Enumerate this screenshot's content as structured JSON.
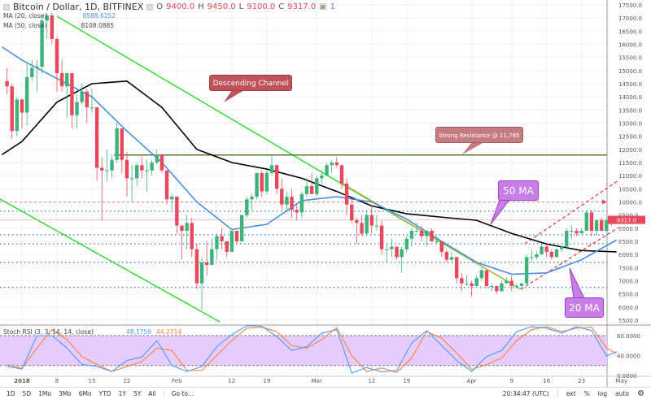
{
  "header": {
    "symbol": "Bitcoin / Dollar, 1D, BITFINEX",
    "o_label": "O",
    "o": "9400.0",
    "h_label": "H",
    "h": "9450.0",
    "l_label": "L",
    "l": "9100.0",
    "c_label": "C",
    "c": "9317.0",
    "alerts": "1"
  },
  "indicators": {
    "ma20": {
      "label": "MA (20, close)",
      "value": "8588.6252",
      "color": "#4a90e2"
    },
    "ma50": {
      "label": "MA (50, close)",
      "value": "8108.0885",
      "color": "#000000"
    },
    "stoch": {
      "label": "Stoch RSI (3, 3, 14, 14, close)",
      "k": "48.1759",
      "d": "44.2714",
      "k_color": "#4a9bff",
      "d_color": "#ff7f3f"
    }
  },
  "annotations": {
    "descending": "Descending Channel",
    "resistance": "Strong Resistance @ 11,785",
    "ma50": "50 MA",
    "ma20": "20 MA"
  },
  "price_label": "9317.0",
  "colors": {
    "up": "#3cb37a",
    "down": "#e8485b",
    "band": "#e6ccff",
    "channel": "#33dd33"
  },
  "toolbar": {
    "ranges": [
      "1D",
      "5D",
      "1Mo",
      "3Mo",
      "6Mo",
      "YTD",
      "1Y",
      "5Y",
      "All"
    ],
    "goto": "Go to...",
    "time": "20:34:47 (UTC)",
    "ext": "ext",
    "pct": "%",
    "log": "log",
    "auto": "auto"
  },
  "chart_data": {
    "type": "candlestick",
    "price_axis": {
      "range": [
        5500,
        17500
      ],
      "ticks": [
        "5500.0",
        "6000.0",
        "6500.0",
        "7000.0",
        "7500.0",
        "8000.0",
        "8500.0",
        "9000.0",
        "9500.0",
        "10000.0",
        "10500.0",
        "11000.0",
        "11500.0",
        "12000.0",
        "12500.0",
        "13000.0",
        "13500.0",
        "14000.0",
        "14500.0",
        "15000.0",
        "15500.0",
        "16000.0",
        "16500.0",
        "17000.0",
        "17500.0"
      ]
    },
    "rsi_axis": {
      "range": [
        0,
        100
      ],
      "ticks": [
        "0.0000",
        "40.0000",
        "80.0000"
      ],
      "band": [
        20,
        80
      ]
    },
    "time_ticks": [
      [
        "2018",
        "2018-01-01"
      ],
      [
        "8",
        "2018-01-08"
      ],
      [
        "15",
        "2018-01-15"
      ],
      [
        "22",
        "2018-01-22"
      ],
      [
        "Feb",
        "2018-02-01"
      ],
      [
        "12",
        "2018-02-12"
      ],
      [
        "19",
        "2018-02-19"
      ],
      [
        "Mar",
        "2018-03-01"
      ],
      [
        "12",
        "2018-03-12"
      ],
      [
        "19",
        "2018-03-19"
      ],
      [
        "Apr",
        "2018-04-01"
      ],
      [
        "9",
        "2018-04-09"
      ],
      [
        "16",
        "2018-04-16"
      ],
      [
        "23",
        "2018-04-23"
      ],
      [
        "May",
        "2018-05-01"
      ]
    ],
    "resistance": 11785,
    "levels_dotted": [
      9650,
      8750,
      8410,
      7700,
      6750
    ],
    "level_dashed": 10000,
    "candles": [
      [
        "2017-12-29",
        14600,
        15100,
        14100,
        14400
      ],
      [
        "2017-12-30",
        14400,
        14500,
        12400,
        12700
      ],
      [
        "2017-12-31",
        12700,
        14000,
        12500,
        13900
      ],
      [
        "2018-01-01",
        13900,
        13900,
        12800,
        13400
      ],
      [
        "2018-01-02",
        13400,
        15300,
        12900,
        14750
      ],
      [
        "2018-01-03",
        14750,
        15400,
        14600,
        15100
      ],
      [
        "2018-01-04",
        15100,
        15400,
        14200,
        15150
      ],
      [
        "2018-01-05",
        15150,
        17100,
        14900,
        16900
      ],
      [
        "2018-01-06",
        16900,
        17200,
        16200,
        17100
      ],
      [
        "2018-01-07",
        17100,
        17200,
        16000,
        16200
      ],
      [
        "2018-01-08",
        16200,
        16300,
        14200,
        14900
      ],
      [
        "2018-01-09",
        14900,
        15400,
        14200,
        14400
      ],
      [
        "2018-01-10",
        14400,
        14900,
        13200,
        14900
      ],
      [
        "2018-01-11",
        14900,
        14900,
        12800,
        13300
      ],
      [
        "2018-01-12",
        13300,
        14100,
        12800,
        13800
      ],
      [
        "2018-01-13",
        13800,
        14500,
        13700,
        14200
      ],
      [
        "2018-01-14",
        14200,
        14300,
        13000,
        13600
      ],
      [
        "2018-01-15",
        13600,
        14300,
        13400,
        13600
      ],
      [
        "2018-01-16",
        13600,
        13600,
        10800,
        11300
      ],
      [
        "2018-01-17",
        11300,
        11700,
        9300,
        11200
      ],
      [
        "2018-01-18",
        11200,
        12000,
        10800,
        11200
      ],
      [
        "2018-01-19",
        11200,
        11800,
        10900,
        11600
      ],
      [
        "2018-01-20",
        11600,
        13000,
        11500,
        12800
      ],
      [
        "2018-01-21",
        12800,
        12800,
        11100,
        11600
      ],
      [
        "2018-01-22",
        11600,
        11900,
        10200,
        10900
      ],
      [
        "2018-01-23",
        10900,
        11400,
        10000,
        10900
      ],
      [
        "2018-01-24",
        10900,
        11500,
        10600,
        11400
      ],
      [
        "2018-01-25",
        11400,
        11700,
        10900,
        11200
      ],
      [
        "2018-01-26",
        11200,
        11600,
        10400,
        11200
      ],
      [
        "2018-01-27",
        11200,
        11600,
        11000,
        11500
      ],
      [
        "2018-01-28",
        11500,
        12000,
        11400,
        11800
      ],
      [
        "2018-01-29",
        11800,
        11800,
        11100,
        11200
      ],
      [
        "2018-01-30",
        11200,
        11200,
        9900,
        10100
      ],
      [
        "2018-01-31",
        10100,
        10300,
        9700,
        10200
      ],
      [
        "2018-02-01",
        10200,
        10200,
        8800,
        9100
      ],
      [
        "2018-02-02",
        9100,
        9100,
        7800,
        8900
      ],
      [
        "2018-02-03",
        8900,
        9500,
        8200,
        9200
      ],
      [
        "2018-02-04",
        9200,
        9400,
        7900,
        8200
      ],
      [
        "2018-02-05",
        8200,
        8400,
        6700,
        6900
      ],
      [
        "2018-02-06",
        6900,
        7900,
        5900,
        7700
      ],
      [
        "2018-02-07",
        7700,
        8500,
        7200,
        7600
      ],
      [
        "2018-02-08",
        7600,
        8600,
        7600,
        8200
      ],
      [
        "2018-02-09",
        8200,
        8800,
        7800,
        8700
      ],
      [
        "2018-02-10",
        8700,
        9000,
        8200,
        8500
      ],
      [
        "2018-02-11",
        8500,
        8500,
        7900,
        8100
      ],
      [
        "2018-02-12",
        8100,
        8900,
        8100,
        8900
      ],
      [
        "2018-02-13",
        8900,
        8900,
        8400,
        8500
      ],
      [
        "2018-02-14",
        8500,
        9500,
        8500,
        9500
      ],
      [
        "2018-02-15",
        9500,
        10200,
        9400,
        10100
      ],
      [
        "2018-02-16",
        10100,
        10300,
        9700,
        10200
      ],
      [
        "2018-02-17",
        10200,
        11100,
        10100,
        11100
      ],
      [
        "2018-02-18",
        11100,
        11200,
        10200,
        10400
      ],
      [
        "2018-02-19",
        10400,
        11200,
        10300,
        11100
      ],
      [
        "2018-02-20",
        11100,
        11800,
        11000,
        11400
      ],
      [
        "2018-02-21",
        11400,
        11400,
        10300,
        10500
      ],
      [
        "2018-02-22",
        10500,
        10900,
        9700,
        9900
      ],
      [
        "2018-02-23",
        9900,
        10400,
        9600,
        10200
      ],
      [
        "2018-02-24",
        10200,
        10500,
        9400,
        9700
      ],
      [
        "2018-02-25",
        9700,
        9900,
        9300,
        9600
      ],
      [
        "2018-02-26",
        9600,
        10400,
        9400,
        10300
      ],
      [
        "2018-02-27",
        10300,
        10900,
        10200,
        10600
      ],
      [
        "2018-02-28",
        10600,
        11100,
        10300,
        10300
      ],
      [
        "2018-03-01",
        10300,
        11000,
        10200,
        10900
      ],
      [
        "2018-03-02",
        10900,
        11200,
        10700,
        11000
      ],
      [
        "2018-03-03",
        11000,
        11500,
        11000,
        11400
      ],
      [
        "2018-03-04",
        11400,
        11600,
        11100,
        11500
      ],
      [
        "2018-03-05",
        11500,
        11700,
        11300,
        11400
      ],
      [
        "2018-03-06",
        11400,
        11400,
        10500,
        10700
      ],
      [
        "2018-03-07",
        10700,
        10900,
        9500,
        9900
      ],
      [
        "2018-03-08",
        9900,
        10100,
        9200,
        9300
      ],
      [
        "2018-03-09",
        9300,
        9400,
        8400,
        9200
      ],
      [
        "2018-03-10",
        9200,
        9500,
        8700,
        8800
      ],
      [
        "2018-03-11",
        8800,
        9700,
        8700,
        9500
      ],
      [
        "2018-03-12",
        9500,
        9900,
        8800,
        9100
      ],
      [
        "2018-03-13",
        9100,
        9500,
        8900,
        9100
      ],
      [
        "2018-03-14",
        9100,
        9300,
        8000,
        8200
      ],
      [
        "2018-03-15",
        8200,
        8400,
        7700,
        8200
      ],
      [
        "2018-03-16",
        8200,
        8600,
        7900,
        8300
      ],
      [
        "2018-03-17",
        8300,
        8300,
        7800,
        7900
      ],
      [
        "2018-03-18",
        7900,
        8300,
        7300,
        8200
      ],
      [
        "2018-03-19",
        8200,
        8700,
        8100,
        8600
      ],
      [
        "2018-03-20",
        8600,
        9000,
        8300,
        8900
      ],
      [
        "2018-03-21",
        8900,
        9200,
        8800,
        8900
      ],
      [
        "2018-03-22",
        8900,
        9100,
        8500,
        8700
      ],
      [
        "2018-03-23",
        8700,
        8900,
        8300,
        8900
      ],
      [
        "2018-03-24",
        8900,
        9000,
        8500,
        8500
      ],
      [
        "2018-03-25",
        8500,
        8700,
        8400,
        8500
      ],
      [
        "2018-03-26",
        8500,
        8500,
        7900,
        8100
      ],
      [
        "2018-03-27",
        8100,
        8200,
        7700,
        7800
      ],
      [
        "2018-03-28",
        7800,
        8100,
        7700,
        7900
      ],
      [
        "2018-03-29",
        7900,
        7900,
        6900,
        7100
      ],
      [
        "2018-03-30",
        7100,
        7300,
        6600,
        6900
      ],
      [
        "2018-03-31",
        6900,
        7200,
        6800,
        6900
      ],
      [
        "2018-04-01",
        6900,
        7000,
        6400,
        6800
      ],
      [
        "2018-04-02",
        6800,
        7200,
        6800,
        7100
      ],
      [
        "2018-04-03",
        7100,
        7500,
        7000,
        7400
      ],
      [
        "2018-04-04",
        7400,
        7400,
        6700,
        6800
      ],
      [
        "2018-04-05",
        6800,
        6900,
        6600,
        6800
      ],
      [
        "2018-04-06",
        6800,
        6800,
        6500,
        6600
      ],
      [
        "2018-04-07",
        6600,
        7000,
        6600,
        6900
      ],
      [
        "2018-04-08",
        6900,
        7100,
        6900,
        7000
      ],
      [
        "2018-04-09",
        7000,
        7200,
        6600,
        6800
      ],
      [
        "2018-04-10",
        6800,
        6900,
        6700,
        6800
      ],
      [
        "2018-04-11",
        6800,
        6900,
        6800,
        6900
      ],
      [
        "2018-04-12",
        6900,
        8000,
        6800,
        7900
      ],
      [
        "2018-04-13",
        7900,
        8200,
        7700,
        7900
      ],
      [
        "2018-04-14",
        7900,
        8100,
        7800,
        8000
      ],
      [
        "2018-04-15",
        8000,
        8400,
        8000,
        8300
      ],
      [
        "2018-04-16",
        8300,
        8400,
        7900,
        8100
      ],
      [
        "2018-04-17",
        8100,
        8200,
        7800,
        7900
      ],
      [
        "2018-04-18",
        7900,
        8200,
        7900,
        8200
      ],
      [
        "2018-04-19",
        8200,
        8300,
        8100,
        8300
      ],
      [
        "2018-04-20",
        8300,
        9000,
        8200,
        8900
      ],
      [
        "2018-04-21",
        8900,
        9100,
        8600,
        8900
      ],
      [
        "2018-04-22",
        8900,
        9000,
        8700,
        8800
      ],
      [
        "2018-04-23",
        8800,
        9000,
        8800,
        8900
      ],
      [
        "2018-04-24",
        8900,
        9700,
        8900,
        9600
      ],
      [
        "2018-04-25",
        9600,
        9700,
        8700,
        8900
      ],
      [
        "2018-04-26",
        8900,
        9300,
        8700,
        9300
      ],
      [
        "2018-04-27",
        9300,
        9400,
        8900,
        8900
      ],
      [
        "2018-04-28",
        8900,
        9400,
        8900,
        9300
      ],
      [
        "2018-04-29",
        9400,
        9450,
        9100,
        9317
      ]
    ],
    "ma20": [
      [
        "2017-12-28",
        15900
      ],
      [
        "2018-01-01",
        15400
      ],
      [
        "2018-01-08",
        14700
      ],
      [
        "2018-01-15",
        14000
      ],
      [
        "2018-01-22",
        12700
      ],
      [
        "2018-01-29",
        11500
      ],
      [
        "2018-02-05",
        10000
      ],
      [
        "2018-02-12",
        8950
      ],
      [
        "2018-02-19",
        9150
      ],
      [
        "2018-02-26",
        10050
      ],
      [
        "2018-03-05",
        10200
      ],
      [
        "2018-03-12",
        10000
      ],
      [
        "2018-03-19",
        9350
      ],
      [
        "2018-03-26",
        8500
      ],
      [
        "2018-04-02",
        7700
      ],
      [
        "2018-04-09",
        7250
      ],
      [
        "2018-04-16",
        7300
      ],
      [
        "2018-04-23",
        7800
      ],
      [
        "2018-04-30",
        8550
      ]
    ],
    "ma50": [
      [
        "2017-12-28",
        11800
      ],
      [
        "2018-01-01",
        12300
      ],
      [
        "2018-01-08",
        13800
      ],
      [
        "2018-01-15",
        14500
      ],
      [
        "2018-01-22",
        14600
      ],
      [
        "2018-01-29",
        13600
      ],
      [
        "2018-02-05",
        12000
      ],
      [
        "2018-02-12",
        11500
      ],
      [
        "2018-02-19",
        11250
      ],
      [
        "2018-02-26",
        10900
      ],
      [
        "2018-03-05",
        10400
      ],
      [
        "2018-03-12",
        9850
      ],
      [
        "2018-03-19",
        9550
      ],
      [
        "2018-03-26",
        9420
      ],
      [
        "2018-04-02",
        9300
      ],
      [
        "2018-04-09",
        8800
      ],
      [
        "2018-04-16",
        8400
      ],
      [
        "2018-04-23",
        8150
      ],
      [
        "2018-04-30",
        8100
      ]
    ],
    "stoch_dates": [
      "2017-12-29",
      "2018-01-01",
      "2018-01-04",
      "2018-01-07",
      "2018-01-10",
      "2018-01-13",
      "2018-01-16",
      "2018-01-19",
      "2018-01-22",
      "2018-01-25",
      "2018-01-28",
      "2018-01-31",
      "2018-02-03",
      "2018-02-06",
      "2018-02-09",
      "2018-02-12",
      "2018-02-15",
      "2018-02-18",
      "2018-02-21",
      "2018-02-24",
      "2018-02-27",
      "2018-03-02",
      "2018-03-05",
      "2018-03-08",
      "2018-03-11",
      "2018-03-14",
      "2018-03-17",
      "2018-03-20",
      "2018-03-23",
      "2018-03-26",
      "2018-03-29",
      "2018-04-01",
      "2018-04-04",
      "2018-04-07",
      "2018-04-10",
      "2018-04-13",
      "2018-04-16",
      "2018-04-19",
      "2018-04-22",
      "2018-04-25",
      "2018-04-28",
      "2018-04-30"
    ],
    "stoch_k": [
      18,
      13,
      80,
      80,
      55,
      22,
      18,
      8,
      30,
      37,
      70,
      20,
      8,
      18,
      58,
      82,
      100,
      99,
      78,
      50,
      58,
      85,
      92,
      5,
      16,
      7,
      10,
      65,
      90,
      60,
      30,
      8,
      38,
      50,
      88,
      98,
      95,
      85,
      98,
      90,
      39,
      48
    ],
    "stoch_d": [
      22,
      14,
      55,
      92,
      72,
      38,
      22,
      8,
      18,
      28,
      55,
      50,
      10,
      10,
      40,
      70,
      95,
      97,
      88,
      60,
      55,
      72,
      96,
      40,
      8,
      15,
      6,
      35,
      88,
      75,
      45,
      12,
      22,
      35,
      70,
      92,
      98,
      88,
      95,
      97,
      55,
      44
    ]
  }
}
